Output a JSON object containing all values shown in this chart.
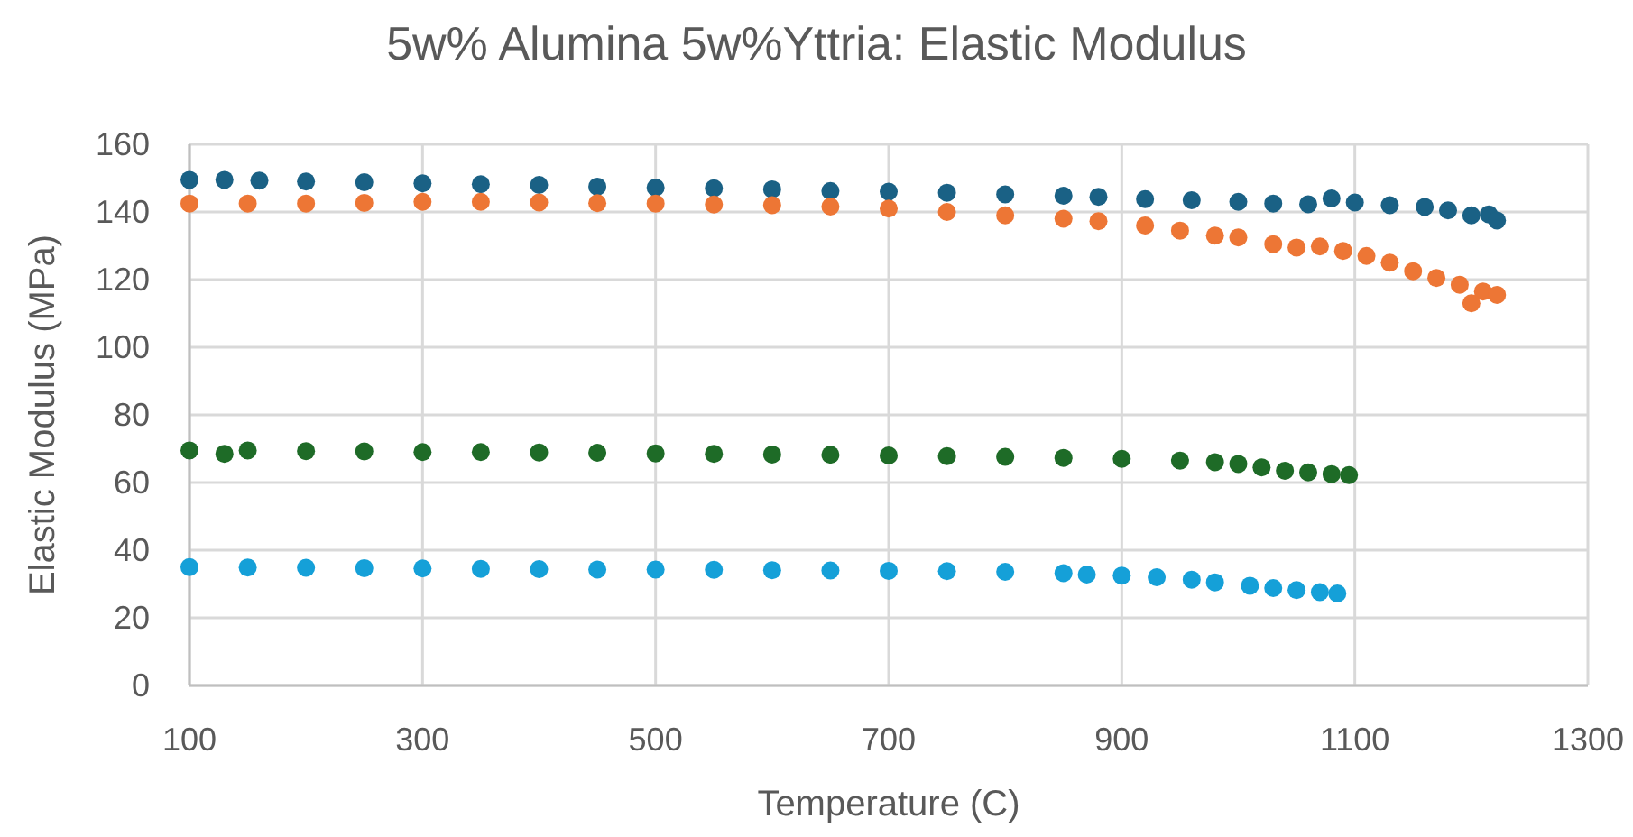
{
  "chart_data": {
    "type": "scatter",
    "title": "5w% Alumina 5w%Yttria: Elastic Modulus",
    "xlabel": "Temperature (C)",
    "ylabel": "Elastic Modulus (MPa)",
    "xlim": [
      100,
      1300
    ],
    "ylim": [
      0,
      160
    ],
    "xticks": [
      100,
      300,
      500,
      700,
      900,
      1100,
      1300
    ],
    "yticks": [
      0,
      20,
      40,
      60,
      80,
      100,
      120,
      140,
      160
    ],
    "grid": true,
    "marker": "circle",
    "series": [
      {
        "color": "#1a6185",
        "x": [
          100,
          130,
          160,
          200,
          250,
          300,
          350,
          400,
          450,
          500,
          550,
          600,
          650,
          700,
          750,
          800,
          850,
          880,
          920,
          960,
          1000,
          1030,
          1060,
          1080,
          1100,
          1130,
          1160,
          1180,
          1200,
          1215,
          1222
        ],
        "values": [
          149.5,
          149.5,
          149.3,
          149,
          148.8,
          148.5,
          148.2,
          148,
          147.5,
          147.2,
          147,
          146.7,
          146.2,
          146,
          145.7,
          145.2,
          144.8,
          144.5,
          143.8,
          143.5,
          143,
          142.5,
          142.3,
          144,
          142.8,
          142,
          141.5,
          140.5,
          139,
          139.3,
          137.5
        ]
      },
      {
        "color": "#ed7635",
        "x": [
          100,
          150,
          200,
          250,
          300,
          350,
          400,
          450,
          500,
          550,
          600,
          650,
          700,
          750,
          800,
          850,
          880,
          920,
          950,
          980,
          1000,
          1030,
          1050,
          1070,
          1090,
          1110,
          1130,
          1150,
          1170,
          1190,
          1200,
          1210,
          1222
        ],
        "values": [
          142.5,
          142.5,
          142.5,
          142.7,
          143,
          143,
          142.8,
          142.6,
          142.5,
          142.2,
          142,
          141.6,
          141,
          140,
          139,
          138,
          137.3,
          136,
          134.5,
          133,
          132.5,
          130.5,
          129.5,
          129.8,
          128.5,
          127,
          125,
          122.5,
          120.5,
          118.5,
          113,
          116.5,
          115.5
        ]
      },
      {
        "color": "#1e6b27",
        "x": [
          100,
          130,
          150,
          200,
          250,
          300,
          350,
          400,
          450,
          500,
          550,
          600,
          650,
          700,
          750,
          800,
          850,
          900,
          950,
          980,
          1000,
          1020,
          1040,
          1060,
          1080,
          1095
        ],
        "values": [
          69.5,
          68.5,
          69.5,
          69.3,
          69.2,
          69,
          69,
          68.9,
          68.8,
          68.6,
          68.5,
          68.3,
          68.2,
          68,
          67.8,
          67.6,
          67.3,
          67,
          66.5,
          66,
          65.5,
          64.5,
          63.5,
          63,
          62.5,
          62.2
        ]
      },
      {
        "color": "#15a0d8",
        "x": [
          100,
          150,
          200,
          250,
          300,
          350,
          400,
          450,
          500,
          550,
          600,
          650,
          700,
          750,
          800,
          850,
          870,
          900,
          930,
          960,
          980,
          1010,
          1030,
          1050,
          1070,
          1085
        ],
        "values": [
          35,
          34.9,
          34.8,
          34.7,
          34.6,
          34.5,
          34.4,
          34.3,
          34.3,
          34.2,
          34.1,
          34,
          33.9,
          33.8,
          33.6,
          33.2,
          32.8,
          32.5,
          32,
          31.3,
          30.5,
          29.5,
          28.8,
          28.2,
          27.6,
          27.2
        ]
      }
    ]
  }
}
